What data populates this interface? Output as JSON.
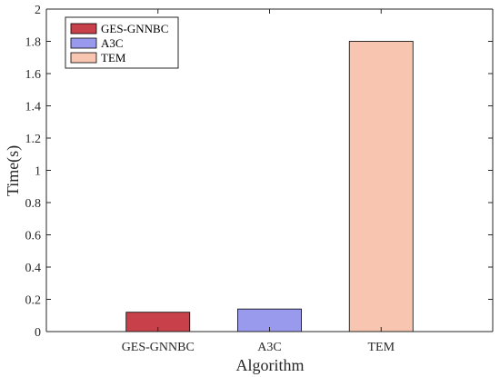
{
  "chart_data": {
    "type": "bar",
    "categories": [
      "GES-GNNBC",
      "A3C",
      "TEM"
    ],
    "values": [
      0.12,
      0.14,
      1.8
    ],
    "xlabel": "Algorithm",
    "ylabel": "Time(s)",
    "ylim": [
      0,
      2
    ],
    "yticks": [
      0,
      0.2,
      0.4,
      0.6,
      0.8,
      1,
      1.2,
      1.4,
      1.6,
      1.8,
      2
    ],
    "ytick_labels": [
      "0",
      "0.2",
      "0.4",
      "0.6",
      "0.8",
      "1",
      "1.2",
      "1.4",
      "1.6",
      "1.8",
      "2"
    ],
    "grid": false,
    "legend_position": "top-left",
    "legend": [
      "GES-GNNBC",
      "A3C",
      "TEM"
    ],
    "colors": [
      "#c8404a",
      "#9999ee",
      "#f8c5b0"
    ],
    "edge_color": "#000000"
  }
}
